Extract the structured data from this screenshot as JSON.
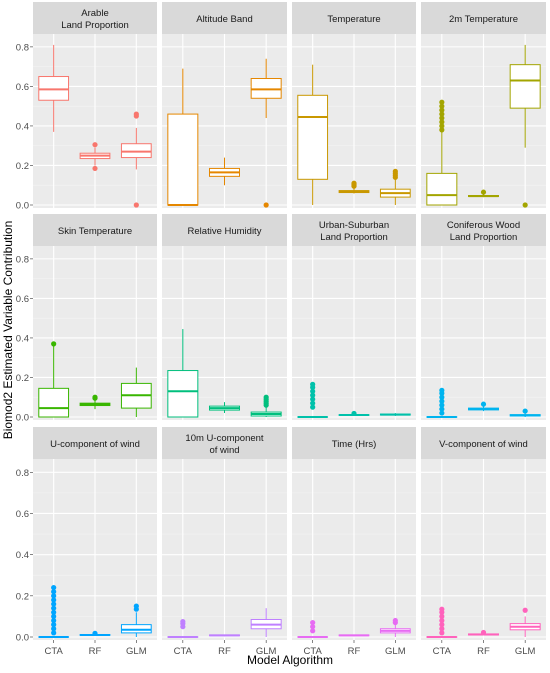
{
  "chart_data": {
    "type": "box",
    "xlabel": "Model Algorithm",
    "ylabel": "Biomod2 Estimated Variable Contribution",
    "categories": [
      "CTA",
      "RF",
      "GLM"
    ],
    "ylim": [
      0,
      0.85
    ],
    "yticks": [
      0.0,
      0.2,
      0.4,
      0.6,
      0.8
    ],
    "ytick_labels": [
      "0.0",
      "0.2",
      "0.4",
      "0.6",
      "0.8"
    ],
    "panels": [
      {
        "title": [
          "Arable",
          "Land Proportion"
        ],
        "color": "#F8766D",
        "boxes": [
          {
            "category": "CTA",
            "lower": 0.37,
            "q1": 0.53,
            "median": 0.585,
            "q3": 0.65,
            "upper": 0.81,
            "outliers": []
          },
          {
            "category": "RF",
            "lower": 0.2,
            "q1": 0.235,
            "median": 0.25,
            "q3": 0.262,
            "upper": 0.29,
            "outliers": [
              0.305,
              0.185
            ]
          },
          {
            "category": "GLM",
            "lower": 0.18,
            "q1": 0.24,
            "median": 0.27,
            "q3": 0.31,
            "upper": 0.39,
            "outliers": [
              0.45,
              0.46,
              0.0
            ]
          }
        ]
      },
      {
        "title": [
          "Altitude Band"
        ],
        "color": "#E58700",
        "boxes": [
          {
            "category": "CTA",
            "lower": 0.0,
            "q1": 0.0,
            "median": 0.0,
            "q3": 0.46,
            "upper": 0.69,
            "outliers": []
          },
          {
            "category": "RF",
            "lower": 0.1,
            "q1": 0.145,
            "median": 0.165,
            "q3": 0.185,
            "upper": 0.24,
            "outliers": []
          },
          {
            "category": "GLM",
            "lower": 0.44,
            "q1": 0.54,
            "median": 0.585,
            "q3": 0.64,
            "upper": 0.74,
            "outliers": [
              0.0
            ]
          }
        ]
      },
      {
        "title": [
          "Temperature"
        ],
        "color": "#C99800",
        "boxes": [
          {
            "category": "CTA",
            "lower": 0.0,
            "q1": 0.13,
            "median": 0.445,
            "q3": 0.555,
            "upper": 0.71,
            "outliers": []
          },
          {
            "category": "RF",
            "lower": 0.058,
            "q1": 0.063,
            "median": 0.068,
            "q3": 0.073,
            "upper": 0.085,
            "outliers": [
              0.095,
              0.1,
              0.105,
              0.11
            ]
          },
          {
            "category": "GLM",
            "lower": 0.0,
            "q1": 0.04,
            "median": 0.06,
            "q3": 0.08,
            "upper": 0.13,
            "outliers": [
              0.14,
              0.15,
              0.16,
              0.17
            ]
          }
        ]
      },
      {
        "title": [
          "2m Temperature"
        ],
        "color": "#A3A500",
        "boxes": [
          {
            "category": "CTA",
            "lower": 0.0,
            "q1": 0.0,
            "median": 0.05,
            "q3": 0.16,
            "upper": 0.37,
            "outliers": [
              0.38,
              0.4,
              0.42,
              0.44,
              0.46,
              0.48,
              0.5,
              0.52
            ]
          },
          {
            "category": "RF",
            "lower": 0.04,
            "q1": 0.043,
            "median": 0.045,
            "q3": 0.048,
            "upper": 0.055,
            "outliers": [
              0.065
            ]
          },
          {
            "category": "GLM",
            "lower": 0.29,
            "q1": 0.49,
            "median": 0.63,
            "q3": 0.71,
            "upper": 0.81,
            "outliers": [
              0.0
            ]
          }
        ]
      },
      {
        "title": [
          "Skin Temperature"
        ],
        "color": "#39B600",
        "boxes": [
          {
            "category": "CTA",
            "lower": 0.0,
            "q1": 0.0,
            "median": 0.045,
            "q3": 0.145,
            "upper": 0.36,
            "outliers": [
              0.37
            ]
          },
          {
            "category": "RF",
            "lower": 0.04,
            "q1": 0.058,
            "median": 0.063,
            "q3": 0.07,
            "upper": 0.085,
            "outliers": [
              0.095,
              0.1
            ]
          },
          {
            "category": "GLM",
            "lower": 0.0,
            "q1": 0.045,
            "median": 0.11,
            "q3": 0.17,
            "upper": 0.25,
            "outliers": []
          }
        ]
      },
      {
        "title": [
          "Relative Humidity"
        ],
        "color": "#00BF7D",
        "boxes": [
          {
            "category": "CTA",
            "lower": 0.0,
            "q1": 0.0,
            "median": 0.13,
            "q3": 0.235,
            "upper": 0.445,
            "outliers": []
          },
          {
            "category": "RF",
            "lower": 0.02,
            "q1": 0.035,
            "median": 0.045,
            "q3": 0.055,
            "upper": 0.075,
            "outliers": []
          },
          {
            "category": "GLM",
            "lower": 0.0,
            "q1": 0.005,
            "median": 0.015,
            "q3": 0.025,
            "upper": 0.055,
            "outliers": [
              0.06,
              0.07,
              0.08,
              0.09,
              0.1
            ]
          }
        ]
      },
      {
        "title": [
          "Urban-Suburban",
          "Land Proportion"
        ],
        "color": "#00C1AA",
        "boxes": [
          {
            "category": "CTA",
            "lower": 0.0,
            "q1": 0.0,
            "median": 0.0,
            "q3": 0.0,
            "upper": 0.0,
            "outliers": [
              0.05,
              0.07,
              0.09,
              0.11,
              0.13,
              0.15,
              0.165
            ]
          },
          {
            "category": "RF",
            "lower": 0.005,
            "q1": 0.008,
            "median": 0.01,
            "q3": 0.012,
            "upper": 0.015,
            "outliers": [
              0.018
            ]
          },
          {
            "category": "GLM",
            "lower": 0.005,
            "q1": 0.01,
            "median": 0.012,
            "q3": 0.015,
            "upper": 0.02,
            "outliers": []
          }
        ]
      },
      {
        "title": [
          "Coniferous Wood",
          "Land Proportion"
        ],
        "color": "#00B4EF",
        "boxes": [
          {
            "category": "CTA",
            "lower": 0.0,
            "q1": 0.0,
            "median": 0.0,
            "q3": 0.0,
            "upper": 0.0,
            "outliers": [
              0.02,
              0.04,
              0.06,
              0.08,
              0.1,
              0.12,
              0.135
            ]
          },
          {
            "category": "RF",
            "lower": 0.03,
            "q1": 0.036,
            "median": 0.04,
            "q3": 0.045,
            "upper": 0.055,
            "outliers": [
              0.065
            ]
          },
          {
            "category": "GLM",
            "lower": 0.0,
            "q1": 0.005,
            "median": 0.008,
            "q3": 0.012,
            "upper": 0.02,
            "outliers": [
              0.03
            ]
          }
        ]
      },
      {
        "title": [
          "U-component of wind"
        ],
        "color": "#00A5FF",
        "boxes": [
          {
            "category": "CTA",
            "lower": 0.0,
            "q1": 0.0,
            "median": 0.0,
            "q3": 0.0,
            "upper": 0.0,
            "outliers": [
              0.02,
              0.04,
              0.06,
              0.08,
              0.1,
              0.12,
              0.14,
              0.16,
              0.18,
              0.2,
              0.22,
              0.24
            ]
          },
          {
            "category": "RF",
            "lower": 0.005,
            "q1": 0.008,
            "median": 0.01,
            "q3": 0.012,
            "upper": 0.015,
            "outliers": [
              0.018
            ]
          },
          {
            "category": "GLM",
            "lower": 0.0,
            "q1": 0.02,
            "median": 0.035,
            "q3": 0.06,
            "upper": 0.12,
            "outliers": [
              0.135,
              0.15
            ]
          }
        ]
      },
      {
        "title": [
          "10m U-component",
          "of wind"
        ],
        "color": "#BF80FF",
        "boxes": [
          {
            "category": "CTA",
            "lower": 0.0,
            "q1": 0.0,
            "median": 0.0,
            "q3": 0.0,
            "upper": 0.0,
            "outliers": [
              0.05,
              0.065,
              0.075
            ]
          },
          {
            "category": "RF",
            "lower": 0.004,
            "q1": 0.006,
            "median": 0.008,
            "q3": 0.01,
            "upper": 0.012,
            "outliers": []
          },
          {
            "category": "GLM",
            "lower": 0.0,
            "q1": 0.04,
            "median": 0.06,
            "q3": 0.085,
            "upper": 0.14,
            "outliers": []
          }
        ]
      },
      {
        "title": [
          "Time (Hrs)"
        ],
        "color": "#E76BF3",
        "boxes": [
          {
            "category": "CTA",
            "lower": 0.0,
            "q1": 0.0,
            "median": 0.0,
            "q3": 0.0,
            "upper": 0.0,
            "outliers": [
              0.03,
              0.05,
              0.07
            ]
          },
          {
            "category": "RF",
            "lower": 0.004,
            "q1": 0.006,
            "median": 0.008,
            "q3": 0.01,
            "upper": 0.012,
            "outliers": []
          },
          {
            "category": "GLM",
            "lower": 0.0,
            "q1": 0.02,
            "median": 0.03,
            "q3": 0.04,
            "upper": 0.065,
            "outliers": [
              0.07,
              0.08
            ]
          }
        ]
      },
      {
        "title": [
          "V-component of wind"
        ],
        "color": "#FF62BC",
        "boxes": [
          {
            "category": "CTA",
            "lower": 0.0,
            "q1": 0.0,
            "median": 0.0,
            "q3": 0.0,
            "upper": 0.0,
            "outliers": [
              0.02,
              0.04,
              0.06,
              0.08,
              0.1,
              0.12,
              0.135
            ]
          },
          {
            "category": "RF",
            "lower": 0.008,
            "q1": 0.01,
            "median": 0.012,
            "q3": 0.015,
            "upper": 0.02,
            "outliers": [
              0.022
            ]
          },
          {
            "category": "GLM",
            "lower": 0.0,
            "q1": 0.035,
            "median": 0.05,
            "q3": 0.065,
            "upper": 0.1,
            "outliers": [
              0.13
            ]
          }
        ]
      }
    ]
  }
}
